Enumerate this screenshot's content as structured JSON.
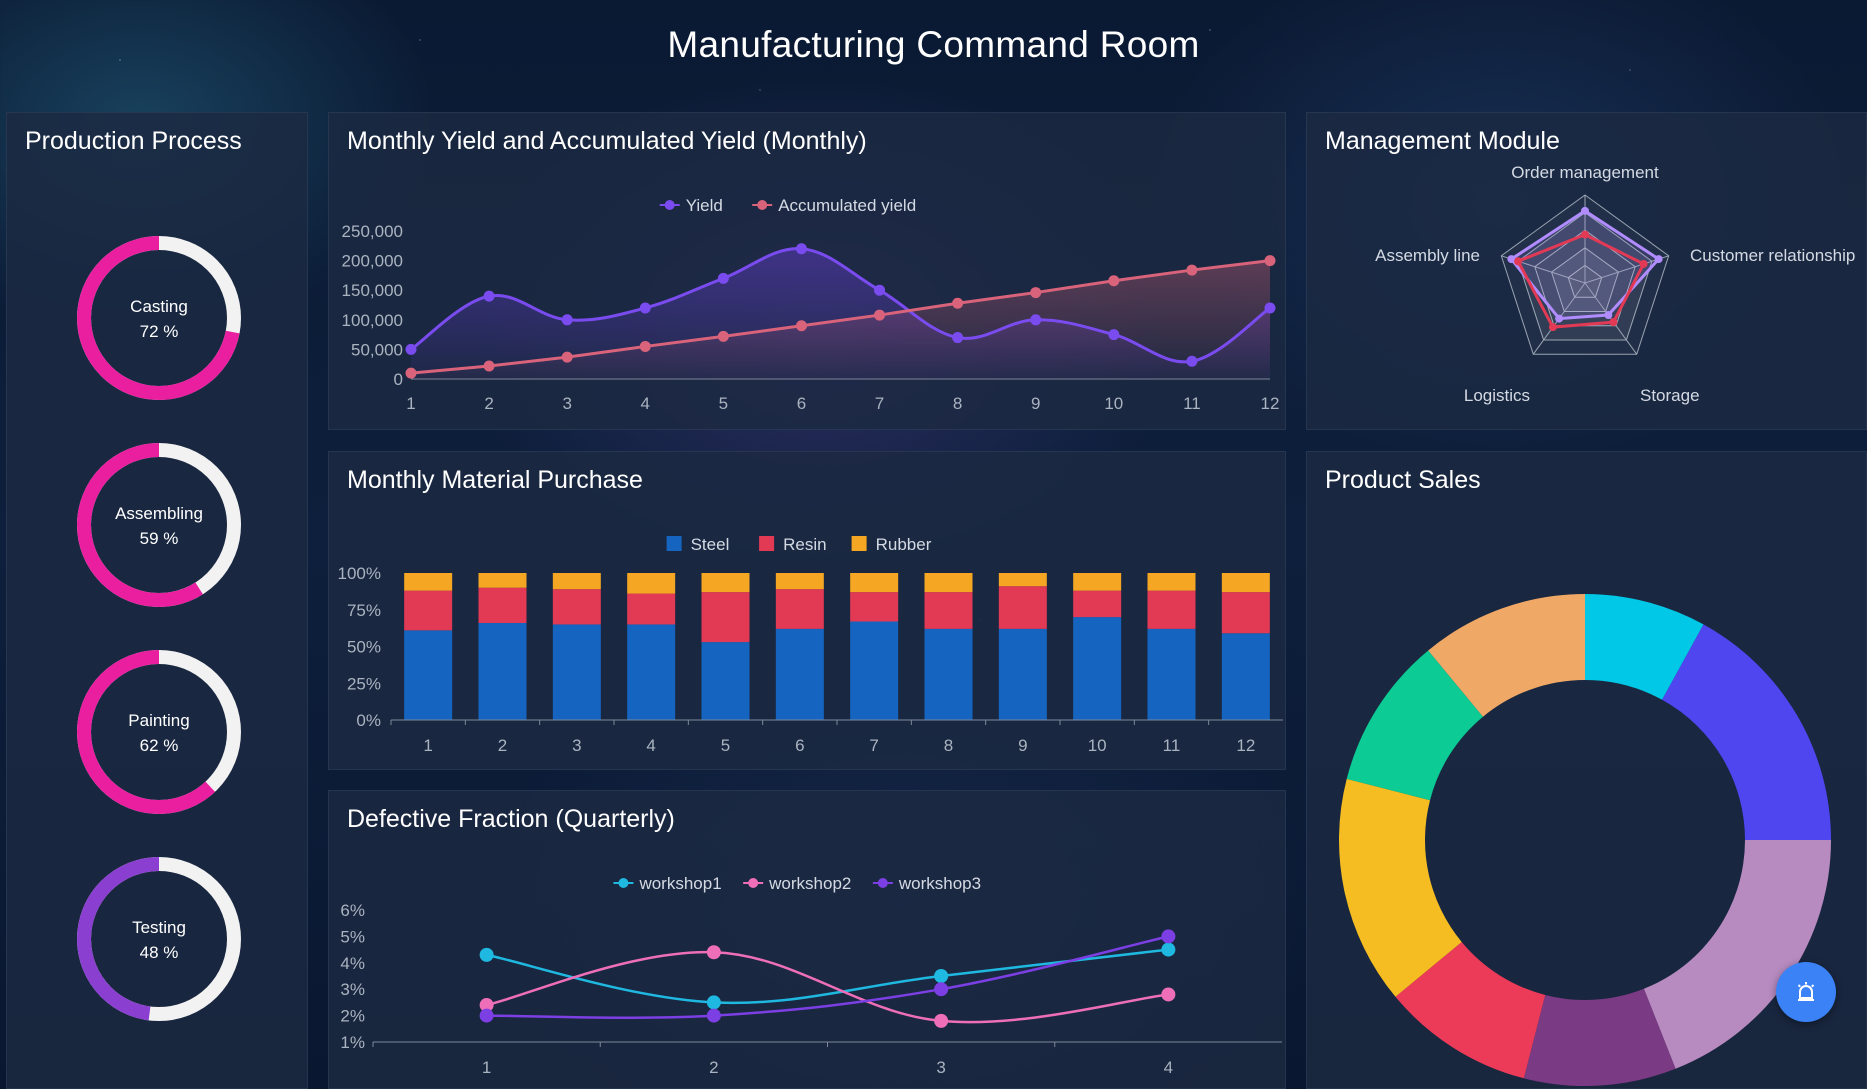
{
  "header": {
    "title": "Manufacturing Command Room"
  },
  "colors": {
    "process_pink": "#e91fa0",
    "process_purple": "#8a3fd1",
    "yield": "#7a4cf0",
    "accumulated": "#d9637a",
    "steel": "#1565c0",
    "resin": "#e23a55",
    "rubber": "#f5a623",
    "workshop1": "#1fb8e0",
    "workshop2": "#ee6fb8",
    "workshop3": "#7b3fe4",
    "fab": "#3b82f6"
  },
  "production_process": {
    "title": "Production Process",
    "items": [
      {
        "label": "Casting",
        "value_text": "72 %",
        "value": 72,
        "color": "#e91fa0"
      },
      {
        "label": "Assembling",
        "value_text": "59 %",
        "value": 59,
        "color": "#e91fa0"
      },
      {
        "label": "Painting",
        "value_text": "62 %",
        "value": 62,
        "color": "#e91fa0"
      },
      {
        "label": "Testing",
        "value_text": "48 %",
        "value": 48,
        "color": "#8a3fd1"
      }
    ]
  },
  "chart_data": [
    {
      "id": "yield",
      "type": "line",
      "title": "Monthly Yield and Accumulated Yield (Monthly)",
      "x": [
        1,
        2,
        3,
        4,
        5,
        6,
        7,
        8,
        9,
        10,
        11,
        12
      ],
      "x_tick_labels": [
        "1",
        "2",
        "3",
        "4",
        "5",
        "6",
        "7",
        "8",
        "9",
        "10",
        "11",
        "12"
      ],
      "ylim": [
        0,
        250000
      ],
      "y_tick_labels": [
        "0",
        "50,000",
        "100,000",
        "150,000",
        "200,000",
        "250,000"
      ],
      "y_ticks": [
        0,
        50000,
        100000,
        150000,
        200000,
        250000
      ],
      "legend_position": "top-center",
      "series": [
        {
          "name": "Yield",
          "color": "#7a4cf0",
          "smooth": true,
          "values": [
            50000,
            140000,
            100000,
            120000,
            170000,
            220000,
            150000,
            70000,
            100000,
            75000,
            30000,
            120000
          ]
        },
        {
          "name": "Accumulated yield",
          "color": "#d9637a",
          "smooth": false,
          "area": true,
          "values": [
            10000,
            22000,
            37000,
            55000,
            72000,
            90000,
            108000,
            128000,
            146000,
            166000,
            184000,
            200000
          ]
        }
      ]
    },
    {
      "id": "material",
      "type": "bar",
      "stacked": true,
      "title": "Monthly Material Purchase",
      "categories": [
        "1",
        "2",
        "3",
        "4",
        "5",
        "6",
        "7",
        "8",
        "9",
        "10",
        "11",
        "12"
      ],
      "ylim": [
        0,
        100
      ],
      "y_tick_labels": [
        "0%",
        "25%",
        "50%",
        "75%",
        "100%"
      ],
      "y_ticks": [
        0,
        25,
        50,
        75,
        100
      ],
      "legend_position": "top-center",
      "series": [
        {
          "name": "Steel",
          "color": "#1565c0",
          "values": [
            61,
            66,
            65,
            65,
            53,
            62,
            67,
            62,
            62,
            70,
            62,
            59
          ]
        },
        {
          "name": "Resin",
          "color": "#e23a55",
          "values": [
            27,
            24,
            24,
            21,
            34,
            27,
            20,
            25,
            29,
            18,
            26,
            28
          ]
        },
        {
          "name": "Rubber",
          "color": "#f5a623",
          "values": [
            12,
            10,
            11,
            14,
            13,
            11,
            13,
            13,
            9,
            12,
            12,
            13
          ]
        }
      ]
    },
    {
      "id": "defective",
      "type": "line",
      "title": "Defective Fraction (Quarterly)",
      "x": [
        1,
        2,
        3,
        4
      ],
      "x_tick_labels": [
        "1",
        "2",
        "3",
        "4"
      ],
      "ylim": [
        1,
        6
      ],
      "y_tick_labels": [
        "1%",
        "2%",
        "3%",
        "4%",
        "5%",
        "6%"
      ],
      "y_ticks": [
        1,
        2,
        3,
        4,
        5,
        6
      ],
      "legend_position": "top-center",
      "series": [
        {
          "name": "workshop1",
          "color": "#1fb8e0",
          "values": [
            4.3,
            2.5,
            3.5,
            4.5
          ]
        },
        {
          "name": "workshop2",
          "color": "#ee6fb8",
          "values": [
            2.4,
            4.4,
            1.8,
            2.8
          ]
        },
        {
          "name": "workshop3",
          "color": "#7b3fe4",
          "values": [
            2.0,
            2.0,
            3.0,
            5.0
          ]
        }
      ]
    },
    {
      "id": "management",
      "type": "radar",
      "title": "Management Module",
      "indicators": [
        "Order management",
        "Customer relationship",
        "Storage",
        "Logistics",
        "Assembly line"
      ],
      "max": 100,
      "series": [
        {
          "color": "#b08cff",
          "values": [
            82,
            88,
            45,
            50,
            88
          ]
        },
        {
          "color": "#e23a55",
          "values": [
            55,
            70,
            55,
            62,
            80
          ]
        }
      ]
    },
    {
      "id": "sales",
      "type": "pie",
      "donut": true,
      "title": "Product Sales",
      "slices": [
        {
          "value": 8,
          "color": "#00c8e6"
        },
        {
          "value": 17,
          "color": "#4f46f0"
        },
        {
          "value": 19,
          "color": "#b78bc0"
        },
        {
          "value": 10,
          "color": "#7b3a84"
        },
        {
          "value": 10,
          "color": "#ec3b58"
        },
        {
          "value": 15,
          "color": "#f5bd22"
        },
        {
          "value": 10,
          "color": "#0ccb95"
        },
        {
          "value": 11,
          "color": "#f0a866"
        }
      ]
    }
  ]
}
